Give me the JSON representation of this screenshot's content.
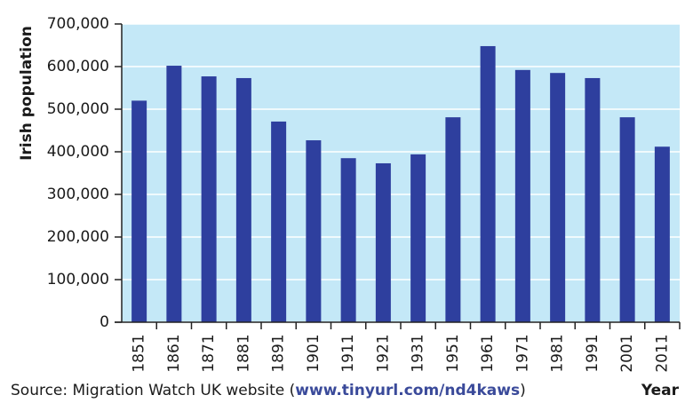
{
  "chart_data": {
    "type": "bar",
    "y_label": "Irish population",
    "x_label": "Year",
    "source_text": "Source: Migration Watch UK website (",
    "source_link": "www.tinyurl.com/nd4kaws",
    "source_close": ")",
    "categories": [
      "1851",
      "1861",
      "1871",
      "1881",
      "1891",
      "1901",
      "1911",
      "1921",
      "1931",
      "1951",
      "1961",
      "1971",
      "1981",
      "1991",
      "2001",
      "2011"
    ],
    "values": [
      520000,
      602000,
      577000,
      573000,
      471000,
      427000,
      385000,
      373000,
      394000,
      481000,
      648000,
      592000,
      585000,
      573000,
      481000,
      412000
    ],
    "color": "#2e3f9e",
    "background": "#c4e8f7",
    "ylim": [
      0,
      700000
    ],
    "yticks": [
      0,
      {
        "value": 100000,
        "label": "100,000"
      },
      {
        "value": 200000,
        "label": "200,000"
      },
      {
        "value": 300000,
        "label": "300,000"
      },
      {
        "value": 400000,
        "label": "400,000"
      },
      {
        "value": 500000,
        "label": "500,000"
      },
      {
        "value": 600000,
        "label": "600,000"
      },
      {
        "value": 700000,
        "label": "700,000"
      }
    ],
    "grid": true
  }
}
